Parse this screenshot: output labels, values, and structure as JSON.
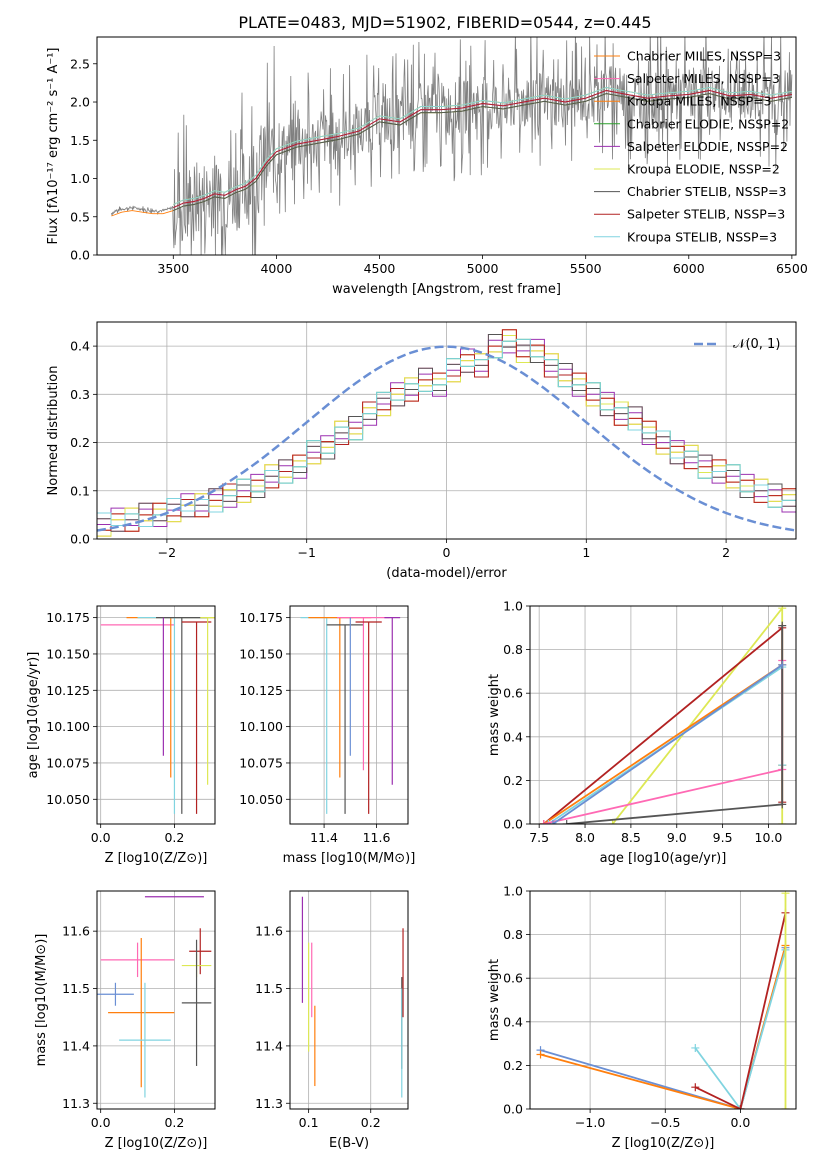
{
  "figure_title": "PLATE=0483, MJD=51902, FIBERID=0544, z=0.445",
  "model_colors": [
    "#ff7f0e",
    "#ff69b4",
    "#ff7f0e",
    "#2ca02c",
    "#9b30b0",
    "#dde854",
    "#555555",
    "#b22222",
    "#80d4e0"
  ],
  "chart_data": [
    {
      "id": "spectrum",
      "type": "line",
      "title": "PLATE=0483, MJD=51902, FIBERID=0544, z=0.445",
      "xlabel": "wavelength [Angstrom, rest frame]",
      "ylabel": "Flux [fλ10⁻¹⁷ erg cm⁻² s⁻¹ A⁻¹]",
      "xlim": [
        3130,
        6520
      ],
      "ylim": [
        0,
        2.85
      ],
      "xticks": [
        3500,
        4000,
        4500,
        5000,
        5500,
        6000,
        6500
      ],
      "yticks": [
        0.0,
        0.5,
        1.0,
        1.5,
        2.0,
        2.5
      ],
      "legend_position": "upper right",
      "series": [
        {
          "name": "Chabrier MILES, NSSP=3",
          "color": "#ff7f0e"
        },
        {
          "name": "Salpeter MILES, NSSP=3",
          "color": "#ff69b4"
        },
        {
          "name": "Kroupa MILES, NSSP=3",
          "color": "#ff7f0e"
        },
        {
          "name": "Chabrier ELODIE, NSSP=2",
          "color": "#2ca02c"
        },
        {
          "name": "Salpeter ELODIE, NSSP=2",
          "color": "#9b30b0"
        },
        {
          "name": "Kroupa ELODIE, NSSP=2",
          "color": "#dde854"
        },
        {
          "name": "Chabrier STELIB, NSSP=3",
          "color": "#555555"
        },
        {
          "name": "Salpeter STELIB, NSSP=3",
          "color": "#b22222"
        },
        {
          "name": "Kroupa STELIB, NSSP=3",
          "color": "#80d4e0"
        }
      ],
      "data_color": "#808080",
      "model_curve": {
        "x": [
          3200,
          3250,
          3300,
          3350,
          3400,
          3450,
          3500,
          3550,
          3600,
          3650,
          3700,
          3750,
          3800,
          3850,
          3900,
          3950,
          4000,
          4100,
          4200,
          4300,
          4400,
          4500,
          4600,
          4700,
          4800,
          4900,
          5000,
          5100,
          5200,
          5300,
          5400,
          5500,
          5600,
          5700,
          5800,
          5900,
          6000,
          6100,
          6200,
          6300,
          6400,
          6500
        ],
        "y": [
          0.55,
          0.6,
          0.62,
          0.6,
          0.58,
          0.58,
          0.62,
          0.68,
          0.7,
          0.74,
          0.8,
          0.78,
          0.85,
          0.9,
          1.0,
          1.2,
          1.35,
          1.45,
          1.5,
          1.55,
          1.62,
          1.78,
          1.74,
          1.9,
          1.9,
          1.92,
          1.98,
          1.95,
          2.0,
          2.05,
          2.0,
          2.05,
          2.15,
          2.1,
          2.05,
          2.08,
          2.1,
          2.15,
          2.08,
          2.1,
          2.05,
          2.1
        ]
      }
    },
    {
      "id": "residuals",
      "type": "line",
      "xlabel": "(data-model)/error",
      "ylabel": "Normed distribution",
      "xlim": [
        -2.5,
        2.5
      ],
      "ylim": [
        0,
        0.45
      ],
      "xticks": [
        -2,
        -1,
        0,
        1,
        2
      ],
      "yticks": [
        0.0,
        0.1,
        0.2,
        0.3,
        0.4
      ],
      "legend_position": "upper right",
      "reference": {
        "name": "𝒩(0, 1)",
        "color": "#6a8fd4",
        "mean": 0,
        "sigma": 1
      },
      "histogram": {
        "bin_left": [
          -2.5,
          -2.4,
          -2.3,
          -2.2,
          -2.1,
          -2.0,
          -1.9,
          -1.8,
          -1.7,
          -1.6,
          -1.5,
          -1.4,
          -1.3,
          -1.2,
          -1.1,
          -1.0,
          -0.9,
          -0.8,
          -0.7,
          -0.6,
          -0.5,
          -0.4,
          -0.3,
          -0.2,
          -0.1,
          0.0,
          0.1,
          0.2,
          0.3,
          0.4,
          0.5,
          0.6,
          0.7,
          0.8,
          0.9,
          1.0,
          1.1,
          1.2,
          1.3,
          1.4,
          1.5,
          1.6,
          1.7,
          1.8,
          1.9,
          2.0,
          2.1,
          2.2,
          2.3,
          2.4
        ],
        "values": [
          0.03,
          0.04,
          0.04,
          0.05,
          0.05,
          0.06,
          0.07,
          0.07,
          0.08,
          0.09,
          0.1,
          0.11,
          0.13,
          0.14,
          0.15,
          0.18,
          0.19,
          0.22,
          0.23,
          0.26,
          0.28,
          0.3,
          0.31,
          0.33,
          0.32,
          0.35,
          0.37,
          0.36,
          0.4,
          0.41,
          0.39,
          0.39,
          0.36,
          0.34,
          0.32,
          0.3,
          0.28,
          0.26,
          0.25,
          0.22,
          0.2,
          0.18,
          0.17,
          0.15,
          0.14,
          0.13,
          0.11,
          0.1,
          0.09,
          0.08
        ]
      }
    },
    {
      "id": "age-vs-Z",
      "type": "scatter",
      "xlabel": "Z [log10(Z/Z⊙)]",
      "ylabel": "age [log10(age/yr)]",
      "xlim": [
        -0.01,
        0.31
      ],
      "ylim": [
        10.033,
        10.183
      ],
      "xticks": [
        0.0,
        0.2
      ],
      "yticks": [
        10.05,
        10.075,
        10.1,
        10.125,
        10.15,
        10.175
      ],
      "points": [
        {
          "x": 0.1,
          "y": 10.17,
          "xerr": 0.1,
          "ylow": 10.17,
          "yhigh": 10.17,
          "color": "#ff69b4"
        },
        {
          "x": 0.19,
          "y": 10.175,
          "xerr": 0.12,
          "ylow": 10.065,
          "yhigh": 10.175,
          "color": "#ff7f0e"
        },
        {
          "x": 0.2,
          "y": 10.175,
          "xerr": 0.1,
          "ylow": 10.04,
          "yhigh": 10.175,
          "color": "#80d4e0"
        },
        {
          "x": 0.22,
          "y": 10.175,
          "xerr": 0.07,
          "ylow": 10.04,
          "yhigh": 10.175,
          "color": "#555555"
        },
        {
          "x": 0.26,
          "y": 10.172,
          "xerr": 0.04,
          "ylow": 10.04,
          "yhigh": 10.172,
          "color": "#b22222"
        },
        {
          "x": 0.29,
          "y": 10.175,
          "xerr": 0.02,
          "ylow": 10.06,
          "yhigh": 10.175,
          "color": "#dde854"
        },
        {
          "x": 0.17,
          "y": 10.175,
          "xerr": 0.0,
          "ylow": 10.08,
          "yhigh": 10.175,
          "color": "#9b30b0"
        }
      ]
    },
    {
      "id": "age-vs-mass",
      "type": "scatter",
      "xlabel": "mass [log10(M/M⊙)]",
      "ylabel": "",
      "xlim": [
        11.27,
        11.72
      ],
      "ylim": [
        10.033,
        10.183
      ],
      "xticks": [
        11.4,
        11.6
      ],
      "yticks": [
        10.05,
        10.075,
        10.1,
        10.125,
        10.15,
        10.175
      ],
      "points": [
        {
          "x": 11.41,
          "y": 10.175,
          "xerr": 0.1,
          "ylow": 10.04,
          "yhigh": 10.175,
          "color": "#80d4e0"
        },
        {
          "x": 11.46,
          "y": 10.175,
          "xerr": 0.12,
          "ylow": 10.065,
          "yhigh": 10.175,
          "color": "#ff7f0e"
        },
        {
          "x": 11.48,
          "y": 10.17,
          "xerr": 0.07,
          "ylow": 10.04,
          "yhigh": 10.17,
          "color": "#555555"
        },
        {
          "x": 11.55,
          "y": 10.175,
          "xerr": 0.1,
          "ylow": 10.07,
          "yhigh": 10.175,
          "color": "#ff69b4"
        },
        {
          "x": 11.57,
          "y": 10.172,
          "xerr": 0.05,
          "ylow": 10.04,
          "yhigh": 10.172,
          "color": "#b22222"
        },
        {
          "x": 11.66,
          "y": 10.175,
          "xerr": 0.03,
          "ylow": 10.06,
          "yhigh": 10.175,
          "color": "#9b30b0"
        },
        {
          "x": 11.5,
          "y": 10.175,
          "xerr": 0.0,
          "ylow": 10.08,
          "yhigh": 10.175,
          "color": "#6a8fd4"
        }
      ]
    },
    {
      "id": "weight-vs-age",
      "type": "line",
      "xlabel": "age  [log10(age/yr)]",
      "ylabel": "mass weight",
      "xlim": [
        7.4,
        10.3
      ],
      "ylim": [
        0,
        1
      ],
      "xticks": [
        7.5,
        8.0,
        8.5,
        9.0,
        9.5,
        10.0
      ],
      "yticks": [
        0.0,
        0.2,
        0.4,
        0.6,
        0.8,
        1.0
      ],
      "series": [
        {
          "color": "#dde854",
          "x": [
            8.3,
            10.15,
            10.15
          ],
          "y": [
            0,
            0.99,
            0.0
          ]
        },
        {
          "color": "#b22222",
          "x": [
            7.55,
            10.15,
            10.15
          ],
          "y": [
            0,
            0.9,
            0.1
          ]
        },
        {
          "color": "#ff7f0e",
          "x": [
            7.55,
            10.15,
            10.15
          ],
          "y": [
            0,
            0.73,
            0.27
          ]
        },
        {
          "color": "#80d4e0",
          "x": [
            7.6,
            10.15,
            10.15
          ],
          "y": [
            0,
            0.72,
            0.27
          ]
        },
        {
          "color": "#ff69b4",
          "x": [
            7.55,
            10.15,
            10.15
          ],
          "y": [
            0,
            0.25,
            0.75
          ]
        },
        {
          "color": "#555555",
          "x": [
            7.8,
            10.15,
            10.15
          ],
          "y": [
            0,
            0.09,
            0.91
          ]
        },
        {
          "color": "#6a8fd4",
          "x": [
            7.65,
            10.15
          ],
          "y": [
            0,
            0.73
          ]
        }
      ]
    },
    {
      "id": "mass-vs-Z",
      "type": "scatter",
      "xlabel": "Z [log10(Z/Z⊙)]",
      "ylabel": "mass [log10(M/M⊙)]",
      "xlim": [
        -0.01,
        0.31
      ],
      "ylim": [
        11.29,
        11.67
      ],
      "xticks": [
        0.0,
        0.2
      ],
      "yticks": [
        11.3,
        11.4,
        11.5,
        11.6
      ],
      "points": [
        {
          "x": 0.2,
          "y": 11.66,
          "xerr": 0.08,
          "yerr": 0.0,
          "color": "#9b30b0"
        },
        {
          "x": 0.1,
          "y": 11.55,
          "xerr": 0.1,
          "yerr": 0.03,
          "color": "#ff69b4"
        },
        {
          "x": 0.27,
          "y": 11.565,
          "xerr": 0.03,
          "yerr": 0.04,
          "color": "#b22222"
        },
        {
          "x": 0.26,
          "y": 11.54,
          "xerr": 0.04,
          "yerr": 0.02,
          "color": "#dde854"
        },
        {
          "x": 0.26,
          "y": 11.475,
          "xerr": 0.04,
          "yerr": 0.11,
          "color": "#555555"
        },
        {
          "x": 0.04,
          "y": 11.49,
          "xerr": 0.05,
          "yerr": 0.02,
          "color": "#6a8fd4"
        },
        {
          "x": 0.11,
          "y": 11.458,
          "xerr": 0.09,
          "yerr": 0.13,
          "color": "#ff7f0e"
        },
        {
          "x": 0.12,
          "y": 11.41,
          "xerr": 0.07,
          "yerr": 0.1,
          "color": "#80d4e0"
        }
      ]
    },
    {
      "id": "mass-vs-EBV",
      "type": "scatter",
      "xlabel": "E(B-V)",
      "ylabel": "",
      "xlim": [
        0.07,
        0.26
      ],
      "ylim": [
        11.29,
        11.67
      ],
      "xticks": [
        0.1,
        0.2
      ],
      "yticks": [
        11.3,
        11.4,
        11.5,
        11.6
      ],
      "points": [
        {
          "x": 0.09,
          "ylow": 11.475,
          "yhigh": 11.66,
          "color": "#9b30b0"
        },
        {
          "x": 0.1,
          "ylow": 11.39,
          "yhigh": 11.58,
          "color": "#dde854"
        },
        {
          "x": 0.105,
          "ylow": 11.45,
          "yhigh": 11.58,
          "color": "#ff69b4"
        },
        {
          "x": 0.11,
          "ylow": 11.33,
          "yhigh": 11.47,
          "color": "#ff7f0e"
        },
        {
          "x": 0.25,
          "ylow": 11.36,
          "yhigh": 11.52,
          "color": "#555555"
        },
        {
          "x": 0.25,
          "ylow": 11.31,
          "yhigh": 11.5,
          "color": "#80d4e0"
        },
        {
          "x": 0.252,
          "ylow": 11.45,
          "yhigh": 11.605,
          "color": "#b22222"
        }
      ]
    },
    {
      "id": "weight-vs-Z",
      "type": "line",
      "xlabel": "Z [log10(Z/Z⊙)]",
      "ylabel": "mass weight",
      "xlim": [
        -1.4,
        0.37
      ],
      "ylim": [
        0,
        1
      ],
      "xticks": [
        -1.0,
        -0.5,
        0.0
      ],
      "yticks": [
        0.0,
        0.2,
        0.4,
        0.6,
        0.8,
        1.0
      ],
      "series": [
        {
          "color": "#6a8fd4",
          "x": [
            -1.33,
            0.0,
            0.3
          ],
          "y": [
            0.27,
            0.0,
            0.74
          ]
        },
        {
          "color": "#ff7f0e",
          "x": [
            -1.33,
            0.0,
            0.3
          ],
          "y": [
            0.25,
            0.0,
            0.75
          ]
        },
        {
          "color": "#80d4e0",
          "x": [
            -0.3,
            0.0,
            0.3
          ],
          "y": [
            0.28,
            0.0,
            0.73
          ]
        },
        {
          "color": "#b22222",
          "x": [
            -0.3,
            0.0,
            0.3
          ],
          "y": [
            0.1,
            0.0,
            0.9
          ]
        },
        {
          "color": "#dde854",
          "x": [
            0.3,
            0.3
          ],
          "y": [
            0.0,
            0.99
          ]
        }
      ]
    }
  ]
}
